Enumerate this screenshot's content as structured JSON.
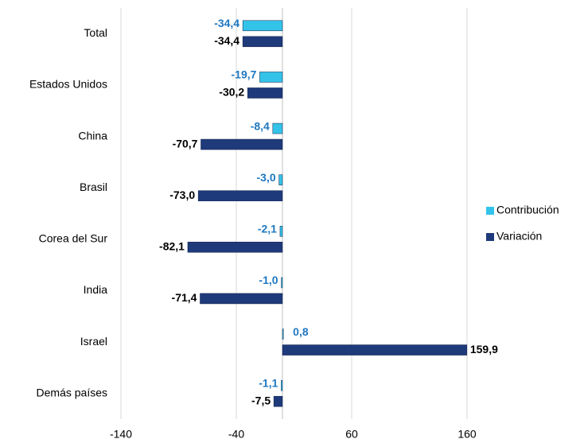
{
  "chart_data": {
    "type": "bar",
    "orientation": "horizontal",
    "categories": [
      "Total",
      "Estados Unidos",
      "China",
      "Brasil",
      "Corea del Sur",
      "India",
      "Israel",
      "Demás países"
    ],
    "series": [
      {
        "name": "Contribución",
        "color": "#33c3e8",
        "values": [
          -34.4,
          -19.7,
          -8.4,
          -3.0,
          -2.1,
          -1.0,
          0.8,
          -1.1
        ],
        "value_labels": [
          "-34,4",
          "-19,7",
          "-8,4",
          "-3,0",
          "-2,1",
          "-1,0",
          "0,8",
          "-1,1"
        ],
        "label_color": "#1f77c0"
      },
      {
        "name": "Variación",
        "color": "#1f3a7a",
        "values": [
          -34.4,
          -30.2,
          -70.7,
          -73.0,
          -82.1,
          -71.4,
          159.9,
          -7.5
        ],
        "value_labels": [
          "-34,4",
          "-30,2",
          "-70,7",
          "-73,0",
          "-82,1",
          "-71,4",
          "159,9",
          "-7,5"
        ],
        "label_color": "#000000"
      }
    ],
    "xlim": [
      -140,
      160
    ],
    "xticks": [
      -140,
      -40,
      60,
      160
    ],
    "grid": true,
    "legend": "right"
  }
}
